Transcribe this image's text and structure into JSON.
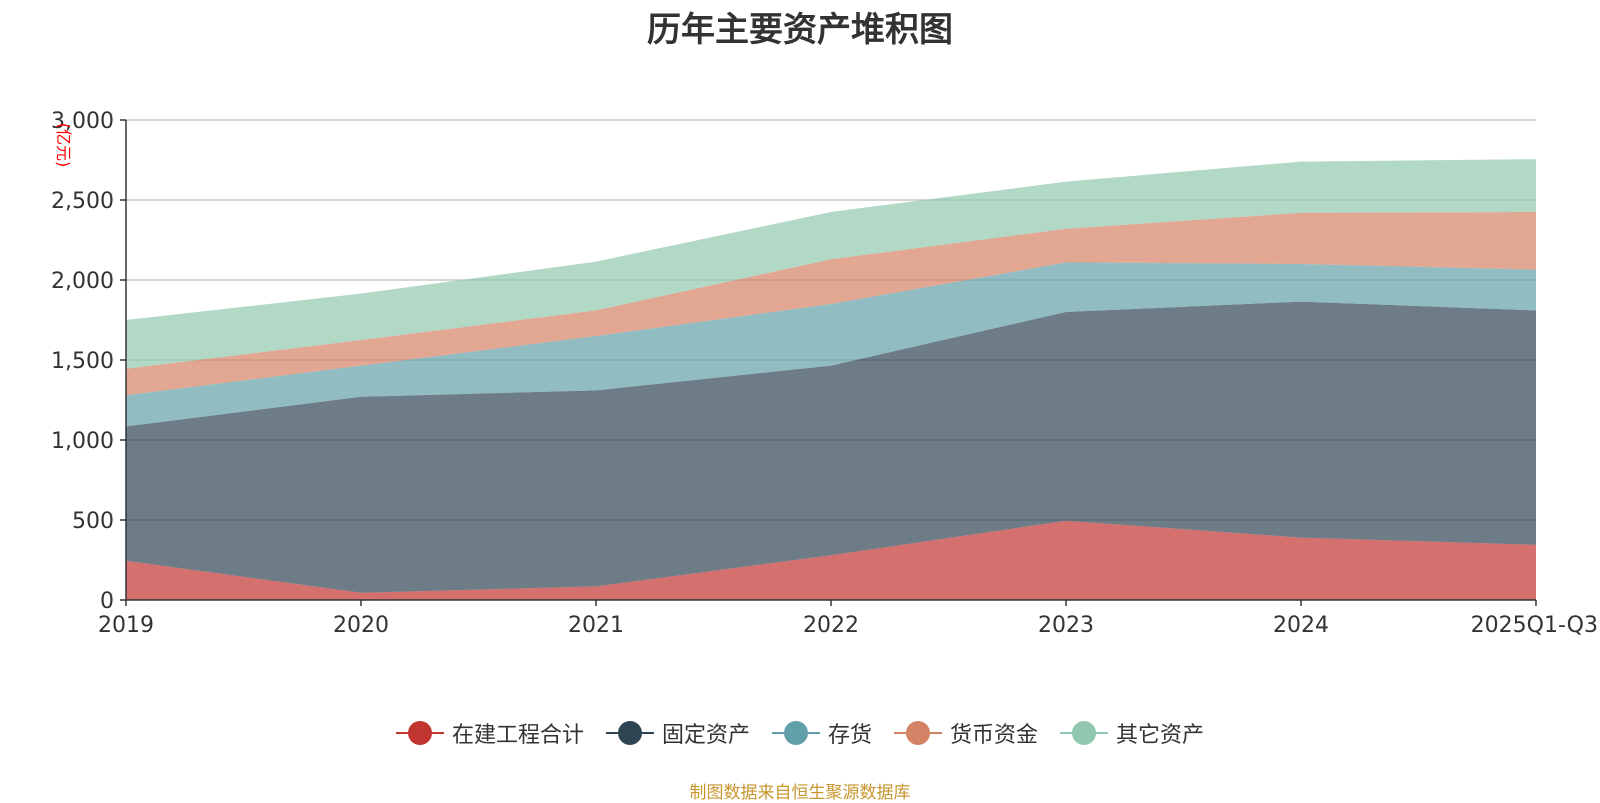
{
  "chart_data": {
    "type": "area",
    "stacked": true,
    "title": "历年主要资产堆积图",
    "ylabel": "(亿元)",
    "xlabel": "",
    "categories": [
      "2019",
      "2020",
      "2021",
      "2022",
      "2023",
      "2024",
      "2025Q1-Q3"
    ],
    "ylim": [
      0,
      3000
    ],
    "yticks": [
      0,
      500,
      1000,
      1500,
      2000,
      2500,
      3000
    ],
    "ytick_labels": [
      "0",
      "500",
      "1,000",
      "1,500",
      "2,000",
      "2,500",
      "3,000"
    ],
    "grid": true,
    "legend_position": "bottom",
    "series": [
      {
        "name": "在建工程合计",
        "color": "#c23531",
        "values": [
          245,
          45,
          85,
          280,
          495,
          390,
          345
        ]
      },
      {
        "name": "固定资产",
        "color": "#2f4554",
        "values": [
          840,
          1225,
          1225,
          1185,
          1305,
          1475,
          1465
        ]
      },
      {
        "name": "存货",
        "color": "#61a0a8",
        "values": [
          195,
          195,
          340,
          385,
          310,
          235,
          255
        ]
      },
      {
        "name": "货币资金",
        "color": "#d48265",
        "values": [
          165,
          160,
          160,
          280,
          210,
          320,
          360
        ]
      },
      {
        "name": "其它资产",
        "color": "#91c7ae",
        "values": [
          305,
          290,
          305,
          295,
          295,
          320,
          330
        ]
      }
    ]
  },
  "source": "制图数据来自恒生聚源数据库"
}
